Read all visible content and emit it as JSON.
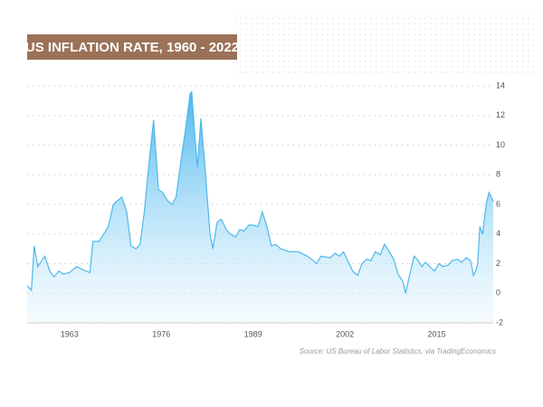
{
  "chart_data": {
    "type": "area",
    "title": "US INFLATION RATE, 1960 - 2022",
    "source": "Source: US Bureau of Labor Statistics, via TradingEconomics",
    "x": [
      1957.0,
      1957.6,
      1958.0,
      1958.5,
      1959.5,
      1960.2,
      1960.8,
      1961.5,
      1962.1,
      1963.0,
      1964.0,
      1965.3,
      1965.9,
      1966.3,
      1967.2,
      1968.5,
      1969.2,
      1970.4,
      1971.1,
      1971.7,
      1972.4,
      1973.0,
      1973.6,
      1974.3,
      1974.9,
      1975.6,
      1976.2,
      1976.8,
      1977.5,
      1978.1,
      1978.8,
      1979.4,
      1980.1,
      1980.3,
      1980.7,
      1981.1,
      1981.6,
      1982.1,
      1982.9,
      1983.3,
      1983.9,
      1984.5,
      1985.2,
      1985.8,
      1986.5,
      1987.1,
      1987.7,
      1988.4,
      1989.0,
      1989.7,
      1990.3,
      1990.9,
      1991.6,
      1992.2,
      1992.9,
      1994.2,
      1995.4,
      1996.7,
      1998.0,
      1998.6,
      1999.9,
      2000.6,
      2001.2,
      2001.8,
      2002.5,
      2003.1,
      2003.8,
      2004.4,
      2005.1,
      2005.7,
      2006.3,
      2007.0,
      2007.6,
      2008.3,
      2008.9,
      2009.5,
      2010.2,
      2010.6,
      2011.1,
      2011.8,
      2012.4,
      2012.9,
      2013.4,
      2014.0,
      2014.7,
      2015.3,
      2015.9,
      2016.6,
      2017.2,
      2017.9,
      2018.5,
      2019.2,
      2019.8,
      2020.2,
      2020.6,
      2020.8,
      2021.1,
      2021.5,
      2022.0,
      2022.4,
      2022.7,
      2023.0
    ],
    "series": [
      {
        "color": "#4fb8ea",
        "values": [
          0.5,
          0.2,
          3.2,
          1.8,
          2.5,
          1.5,
          1.1,
          1.5,
          1.3,
          1.4,
          1.8,
          1.5,
          1.4,
          3.5,
          3.5,
          4.5,
          6.0,
          6.5,
          5.5,
          3.2,
          3.0,
          3.3,
          5.5,
          9.0,
          11.7,
          7.0,
          6.8,
          6.3,
          6.0,
          6.5,
          9.0,
          11.0,
          13.5,
          13.6,
          11.0,
          8.5,
          11.8,
          9.0,
          4.0,
          3.0,
          4.8,
          5.0,
          4.3,
          4.0,
          3.8,
          4.3,
          4.2,
          4.6,
          4.6,
          4.5,
          5.5,
          4.6,
          3.2,
          3.3,
          3.0,
          2.8,
          2.8,
          2.5,
          2.0,
          2.5,
          2.4,
          2.7,
          2.5,
          2.8,
          2.1,
          1.5,
          1.2,
          2.0,
          2.3,
          2.2,
          2.8,
          2.6,
          3.3,
          2.8,
          2.3,
          1.3,
          0.8,
          0.0,
          1.1,
          2.5,
          2.2,
          1.8,
          2.1,
          1.8,
          1.5,
          2.0,
          1.8,
          1.9,
          2.2,
          2.3,
          2.1,
          2.4,
          2.2,
          1.2,
          1.6,
          2.0,
          4.5,
          4.0,
          6.0,
          6.8,
          6.5,
          6.2
        ]
      }
    ],
    "xlim": [
      1957,
      2023
    ],
    "xticks": [
      1963,
      1976,
      1989,
      2002,
      2015
    ],
    "ylim": [
      -2,
      14
    ],
    "yticks": [
      -2,
      0,
      2,
      4,
      6,
      8,
      10,
      12,
      14
    ],
    "grid": true
  }
}
